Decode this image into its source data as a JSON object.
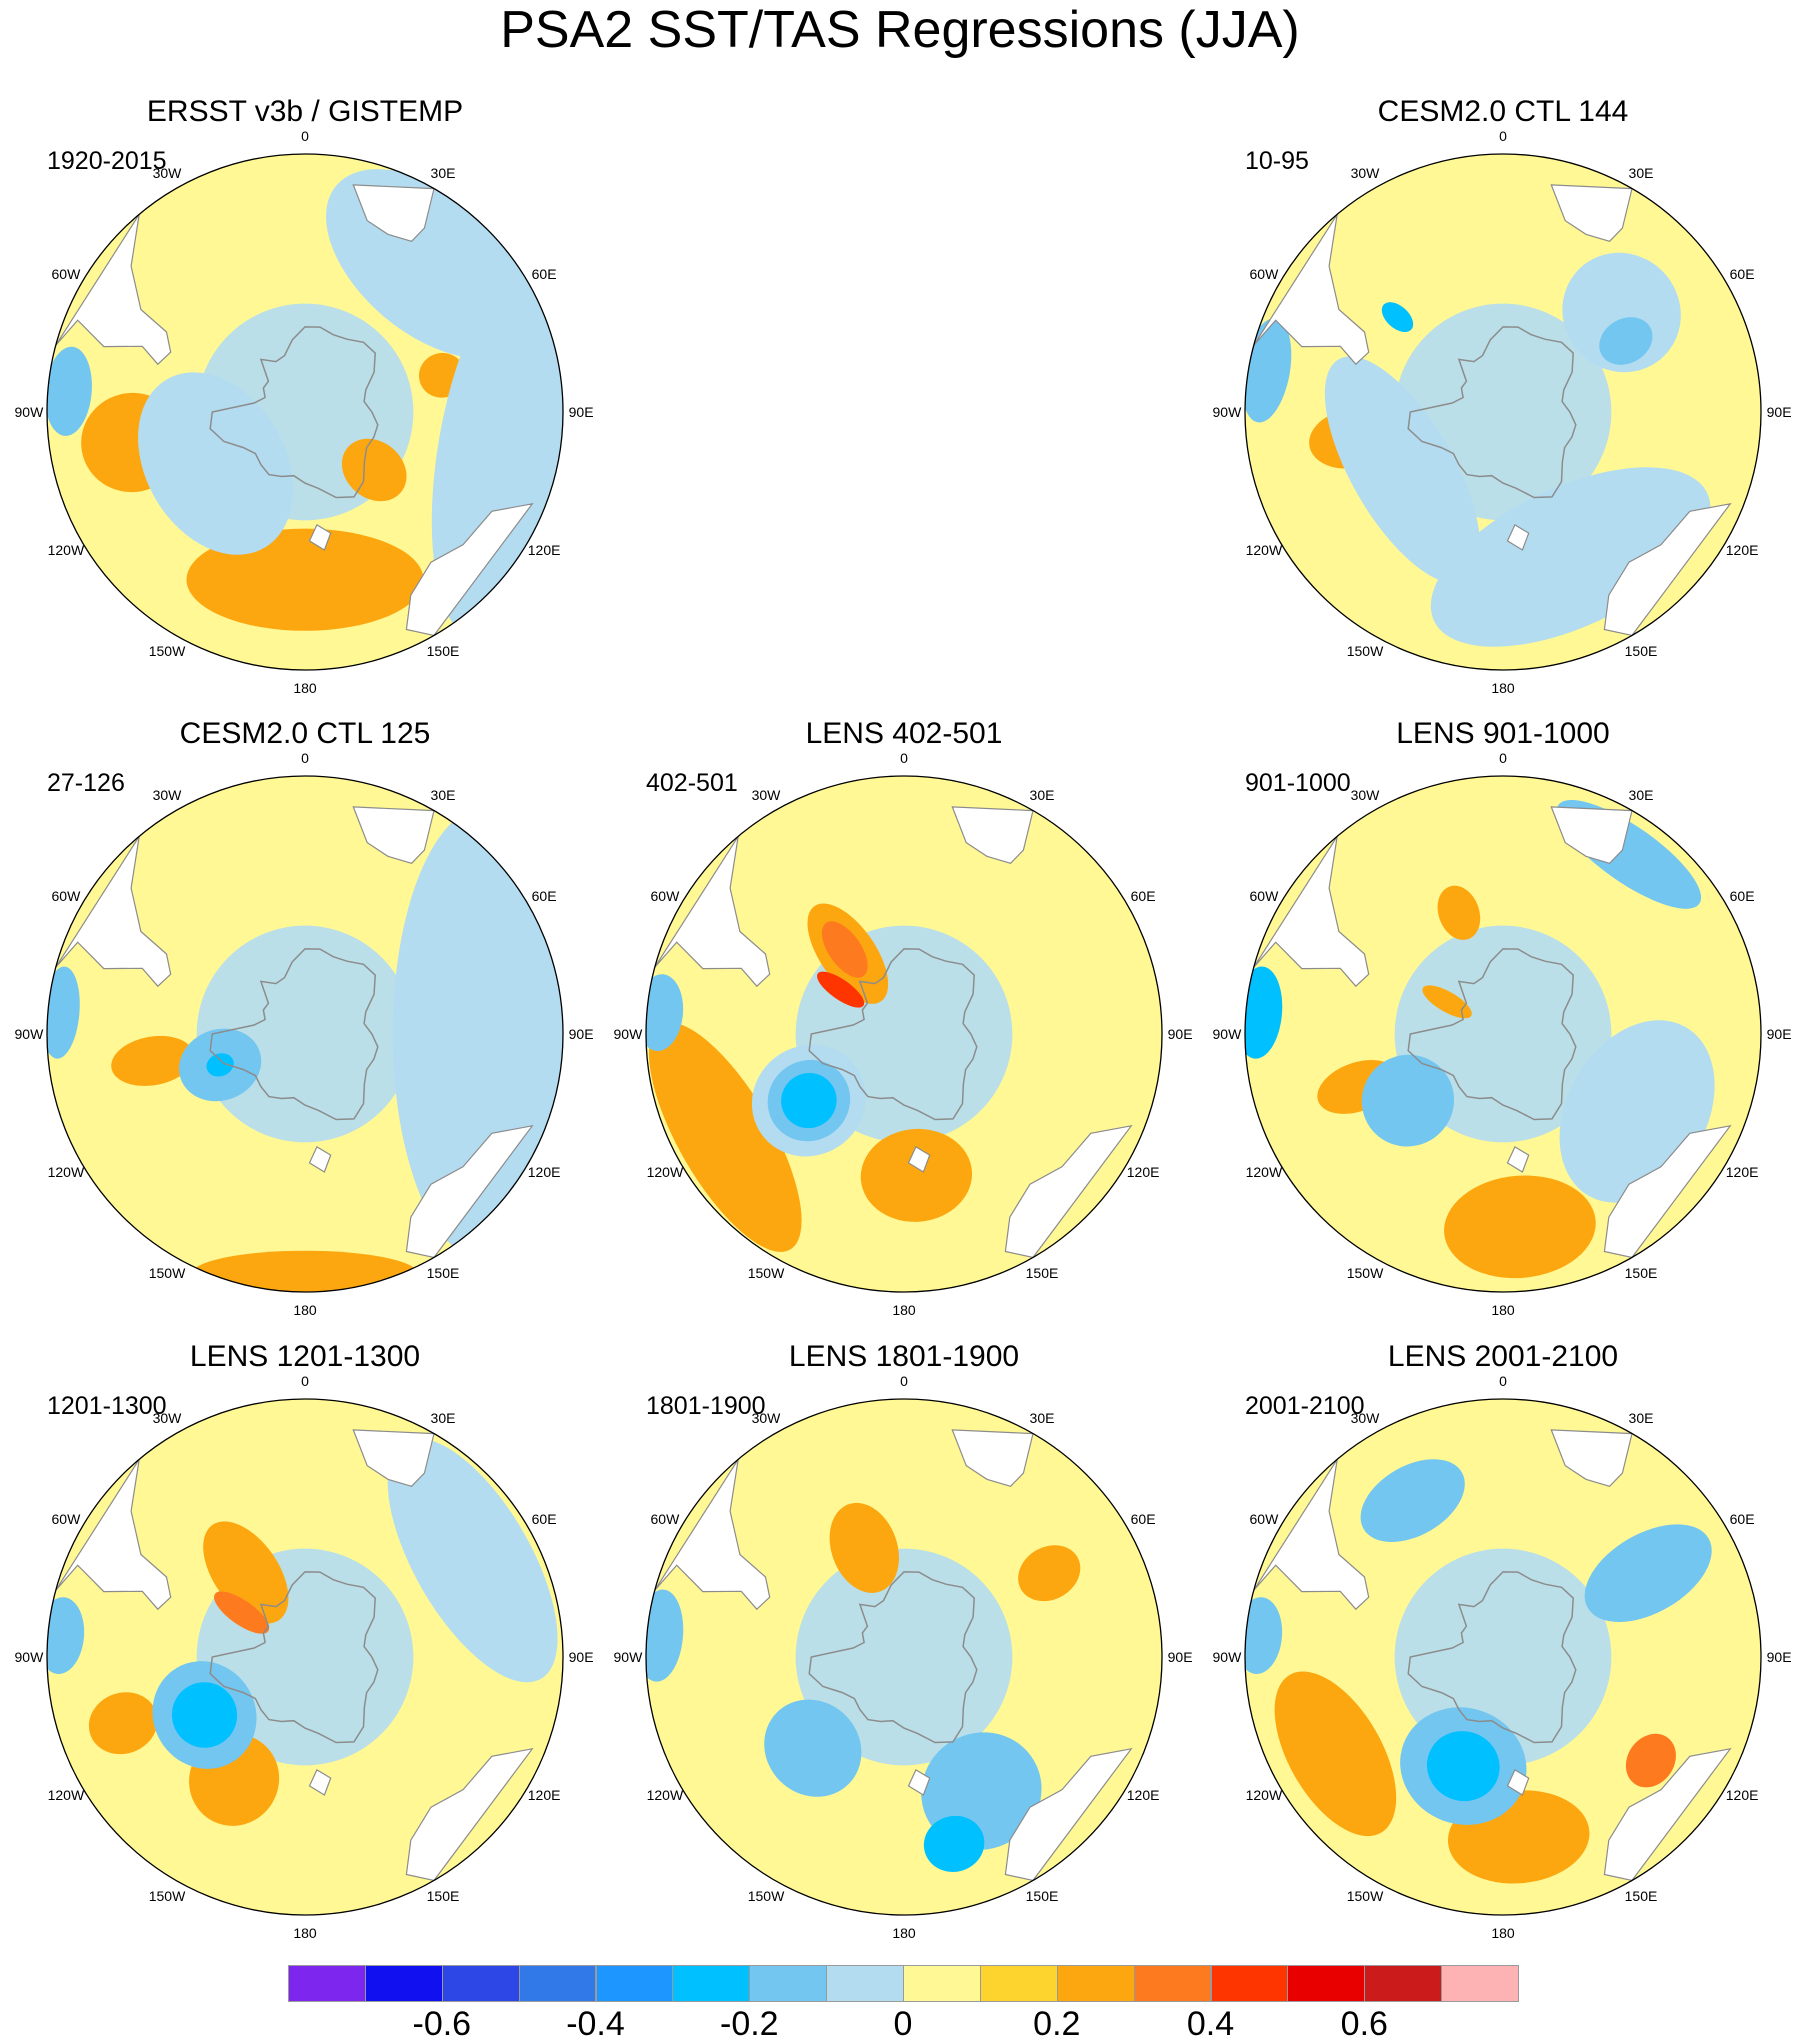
{
  "title": "PSA2 SST/TAS Regressions (JJA)",
  "colors": {
    "ocean_neutral_neg": "#b3dcf1",
    "ocean_neutral_pos": "#fff894",
    "coast": "#8c8c8c",
    "land_mask": "#ffffff"
  },
  "chart_data": [
    {
      "type": "contour-map",
      "projection": "south-polar-stereographic",
      "title": "ERSST v3b / GISTEMP",
      "period": "1920-2015",
      "lon_labels": [
        "0",
        "30E",
        "60E",
        "90E",
        "120E",
        "150E",
        "180",
        "150W",
        "120W",
        "90W",
        "60W",
        "30W"
      ],
      "patches": [
        {
          "lon": 180,
          "r": 0.65,
          "w": 45,
          "dr": 0.22,
          "level": 0.2
        },
        {
          "lon": 130,
          "r": 0.35,
          "w": 20,
          "dr": 0.15,
          "level": 0.2
        },
        {
          "lon": -100,
          "r": 0.68,
          "w": 18,
          "dr": 0.22,
          "level": 0.2
        },
        {
          "lon": 75,
          "r": 0.55,
          "w": 10,
          "dr": 0.1,
          "level": 0.2
        },
        {
          "lon": -120,
          "r": 0.4,
          "w": 60,
          "dr": 0.3,
          "level": -0.1
        },
        {
          "lon": 100,
          "r": 0.8,
          "w": 60,
          "dr": 0.3,
          "level": -0.1
        },
        {
          "lon": 40,
          "r": 0.75,
          "w": 40,
          "dr": 0.3,
          "level": -0.1
        },
        {
          "lon": -85,
          "r": 0.92,
          "w": 12,
          "dr": 0.1,
          "level": -0.2
        }
      ]
    },
    {
      "type": "contour-map",
      "projection": "south-polar-stereographic",
      "title": "CESM2.0 CTL 144",
      "period": "10-95",
      "lon_labels": [
        "0",
        "30E",
        "60E",
        "90E",
        "120E",
        "150E",
        "180",
        "150W",
        "120W",
        "90W",
        "60W",
        "30W"
      ],
      "patches": [
        {
          "lon": -100,
          "r": 0.6,
          "w": 12,
          "dr": 0.18,
          "level": 0.2
        },
        {
          "lon": -120,
          "r": 0.45,
          "w": 70,
          "dr": 0.22,
          "level": -0.1
        },
        {
          "lon": 155,
          "r": 0.62,
          "w": 60,
          "dr": 0.3,
          "level": -0.1
        },
        {
          "lon": 50,
          "r": 0.6,
          "w": 25,
          "dr": 0.25,
          "level": -0.1
        },
        {
          "lon": 60,
          "r": 0.55,
          "w": 10,
          "dr": 0.12,
          "level": -0.2
        },
        {
          "lon": -80,
          "r": 0.93,
          "w": 14,
          "dr": 0.1,
          "level": -0.2
        },
        {
          "lon": -48,
          "r": 0.55,
          "w": 5,
          "dr": 0.08,
          "level": -0.3
        }
      ]
    },
    {
      "type": "contour-map",
      "projection": "south-polar-stereographic",
      "title": "CESM2.0 CTL 125",
      "period": "27-126",
      "lon_labels": [
        "0",
        "30E",
        "60E",
        "90E",
        "120E",
        "150E",
        "180",
        "150W",
        "120W",
        "90W",
        "60W",
        "30W"
      ],
      "patches": [
        {
          "lon": -100,
          "r": 0.6,
          "w": 10,
          "dr": 0.18,
          "level": 0.2
        },
        {
          "lon": 180,
          "r": 0.93,
          "w": 30,
          "dr": 0.1,
          "level": 0.2
        },
        {
          "lon": -110,
          "r": 0.35,
          "w": 25,
          "dr": 0.18,
          "level": -0.2
        },
        {
          "lon": -110,
          "r": 0.35,
          "w": 8,
          "dr": 0.06,
          "level": -0.3
        },
        {
          "lon": 90,
          "r": 0.7,
          "w": 80,
          "dr": 0.4,
          "level": -0.1
        },
        {
          "lon": -85,
          "r": 0.95,
          "w": 12,
          "dr": 0.08,
          "level": -0.2
        }
      ]
    },
    {
      "type": "contour-map",
      "projection": "south-polar-stereographic",
      "title": "LENS 402-501",
      "period": "402-501",
      "lon_labels": [
        "0",
        "30E",
        "60E",
        "90E",
        "120E",
        "150E",
        "180",
        "150W",
        "120W",
        "90W",
        "60W",
        "30W"
      ],
      "patches": [
        {
          "lon": -120,
          "r": 0.8,
          "w": 40,
          "dr": 0.2,
          "level": 0.2
        },
        {
          "lon": 175,
          "r": 0.55,
          "w": 25,
          "dr": 0.2,
          "level": 0.2
        },
        {
          "lon": -35,
          "r": 0.38,
          "w": 18,
          "dr": 0.25,
          "level": 0.2
        },
        {
          "lon": -35,
          "r": 0.4,
          "w": 10,
          "dr": 0.14,
          "level": 0.3
        },
        {
          "lon": -55,
          "r": 0.3,
          "w": 6,
          "dr": 0.12,
          "level": 0.4
        },
        {
          "lon": -125,
          "r": 0.45,
          "w": 30,
          "dr": 0.25,
          "level": -0.1
        },
        {
          "lon": -125,
          "r": 0.45,
          "w": 22,
          "dr": 0.18,
          "level": -0.2
        },
        {
          "lon": -125,
          "r": 0.45,
          "w": 15,
          "dr": 0.12,
          "level": -0.3
        },
        {
          "lon": -85,
          "r": 0.95,
          "w": 10,
          "dr": 0.1,
          "level": -0.2
        }
      ]
    },
    {
      "type": "contour-map",
      "projection": "south-polar-stereographic",
      "title": "LENS 901-1000",
      "period": "901-1000",
      "lon_labels": [
        "0",
        "30E",
        "60E",
        "90E",
        "120E",
        "150E",
        "180",
        "150W",
        "120W",
        "90W",
        "60W",
        "30W"
      ],
      "patches": [
        {
          "lon": -110,
          "r": 0.6,
          "w": 10,
          "dr": 0.18,
          "level": 0.2
        },
        {
          "lon": 175,
          "r": 0.75,
          "w": 25,
          "dr": 0.22,
          "level": 0.2
        },
        {
          "lon": -20,
          "r": 0.5,
          "w": 10,
          "dr": 0.12,
          "level": 0.2
        },
        {
          "lon": -60,
          "r": 0.25,
          "w": 10,
          "dr": 0.12,
          "level": 0.2
        },
        {
          "lon": -125,
          "r": 0.45,
          "w": 25,
          "dr": 0.2,
          "level": -0.2
        },
        {
          "lon": 120,
          "r": 0.6,
          "w": 40,
          "dr": 0.3,
          "level": -0.1
        },
        {
          "lon": 35,
          "r": 0.85,
          "w": 25,
          "dr": 0.12,
          "level": -0.2
        },
        {
          "lon": -85,
          "r": 0.95,
          "w": 12,
          "dr": 0.1,
          "level": -0.3
        }
      ]
    },
    {
      "type": "contour-map",
      "projection": "south-polar-stereographic",
      "title": "LENS 1201-1300",
      "period": "1201-1300",
      "lon_labels": [
        "0",
        "30E",
        "60E",
        "90E",
        "120E",
        "150E",
        "180",
        "150W",
        "120W",
        "90W",
        "60W",
        "30W"
      ],
      "patches": [
        {
          "lon": -150,
          "r": 0.55,
          "w": 20,
          "dr": 0.2,
          "level": 0.2
        },
        {
          "lon": -110,
          "r": 0.75,
          "w": 10,
          "dr": 0.15,
          "level": 0.2
        },
        {
          "lon": -35,
          "r": 0.4,
          "w": 20,
          "dr": 0.25,
          "level": 0.2
        },
        {
          "lon": -55,
          "r": 0.3,
          "w": 10,
          "dr": 0.14,
          "level": 0.3
        },
        {
          "lon": -120,
          "r": 0.45,
          "w": 30,
          "dr": 0.22,
          "level": -0.2
        },
        {
          "lon": -120,
          "r": 0.45,
          "w": 18,
          "dr": 0.14,
          "level": -0.3
        },
        {
          "lon": 60,
          "r": 0.75,
          "w": 45,
          "dr": 0.25,
          "level": -0.1
        },
        {
          "lon": -85,
          "r": 0.95,
          "w": 10,
          "dr": 0.1,
          "level": -0.2
        }
      ]
    },
    {
      "type": "contour-map",
      "projection": "south-polar-stereographic",
      "title": "LENS 1801-1900",
      "period": "1801-1900",
      "lon_labels": [
        "0",
        "30E",
        "60E",
        "90E",
        "120E",
        "150E",
        "180",
        "150W",
        "120W",
        "90W",
        "60W",
        "30W"
      ],
      "patches": [
        {
          "lon": -20,
          "r": 0.45,
          "w": 18,
          "dr": 0.2,
          "level": 0.2
        },
        {
          "lon": 60,
          "r": 0.65,
          "w": 10,
          "dr": 0.14,
          "level": 0.2
        },
        {
          "lon": -135,
          "r": 0.5,
          "w": 25,
          "dr": 0.2,
          "level": -0.2
        },
        {
          "lon": 150,
          "r": 0.6,
          "w": 25,
          "dr": 0.25,
          "level": -0.2
        },
        {
          "lon": 165,
          "r": 0.75,
          "w": 10,
          "dr": 0.12,
          "level": -0.3
        },
        {
          "lon": -85,
          "r": 0.95,
          "w": 12,
          "dr": 0.1,
          "level": -0.2
        }
      ]
    },
    {
      "type": "contour-map",
      "projection": "south-polar-stereographic",
      "title": "LENS 2001-2100",
      "period": "2001-2100",
      "lon_labels": [
        "0",
        "30E",
        "60E",
        "90E",
        "120E",
        "150E",
        "180",
        "150W",
        "120W",
        "90W",
        "60W",
        "30W"
      ],
      "patches": [
        {
          "lon": -120,
          "r": 0.75,
          "w": 30,
          "dr": 0.2,
          "level": 0.2
        },
        {
          "lon": 175,
          "r": 0.7,
          "w": 25,
          "dr": 0.2,
          "level": 0.2
        },
        {
          "lon": 125,
          "r": 0.7,
          "w": 10,
          "dr": 0.1,
          "level": 0.3
        },
        {
          "lon": -160,
          "r": 0.45,
          "w": 35,
          "dr": 0.25,
          "level": -0.2
        },
        {
          "lon": -160,
          "r": 0.45,
          "w": 20,
          "dr": 0.15,
          "level": -0.3
        },
        {
          "lon": 60,
          "r": 0.65,
          "w": 15,
          "dr": 0.3,
          "level": -0.2
        },
        {
          "lon": -30,
          "r": 0.7,
          "w": 20,
          "dr": 0.15,
          "level": -0.2
        },
        {
          "lon": -85,
          "r": 0.95,
          "w": 10,
          "dr": 0.1,
          "level": -0.2
        }
      ]
    }
  ],
  "colorbar": {
    "levels": [
      -0.7,
      -0.6,
      -0.5,
      -0.4,
      -0.3,
      -0.2,
      -0.1,
      0,
      0.1,
      0.2,
      0.3,
      0.4,
      0.5,
      0.6,
      0.7
    ],
    "colors": [
      "#7d26ee",
      "#1010f0",
      "#2d46e6",
      "#3178e8",
      "#1e96ff",
      "#00c0ff",
      "#73c6f0",
      "#b3dcf1",
      "#fff894",
      "#fdd32d",
      "#fda710",
      "#fe7a1e",
      "#ff3500",
      "#e80000",
      "#cc1b1b",
      "#fdb3b3"
    ],
    "tick_labels": [
      "-0.6",
      "-0.4",
      "-0.2",
      "0",
      "0.2",
      "0.4",
      "0.6"
    ],
    "tick_values": [
      -0.6,
      -0.4,
      -0.2,
      0,
      0.2,
      0.4,
      0.6
    ]
  }
}
